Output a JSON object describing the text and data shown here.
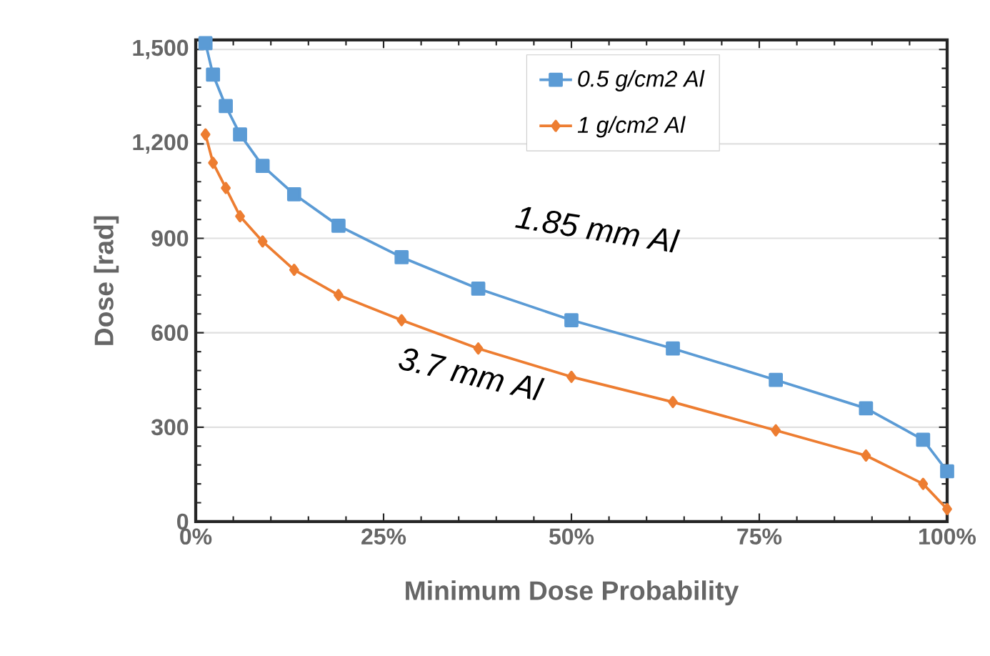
{
  "chart_data": {
    "type": "line",
    "xlabel": "Minimum Dose Probability",
    "ylabel": "Dose [rad]",
    "xlim": [
      0,
      100
    ],
    "ylim": [
      0,
      1530
    ],
    "xticks": [
      {
        "value": 0,
        "label": "0%"
      },
      {
        "value": 25,
        "label": "25%"
      },
      {
        "value": 50,
        "label": "50%"
      },
      {
        "value": 75,
        "label": "75%"
      },
      {
        "value": 100,
        "label": "100%"
      }
    ],
    "yticks": [
      0,
      300,
      600,
      900,
      {
        "value": 1200,
        "label": "1,200"
      },
      {
        "value": 1500,
        "label": "1,500"
      }
    ],
    "grid": "y",
    "legend": "top right",
    "series": [
      {
        "name": "0.5 g/cm2 Al",
        "color": "#5b9bd5",
        "marker": "square",
        "x": [
          1.3,
          2.3,
          4,
          5.9,
          8.9,
          13.1,
          19,
          27.4,
          37.6,
          50,
          63.5,
          77.2,
          89.2,
          96.8,
          100
        ],
        "values": [
          1520,
          1420,
          1320,
          1230,
          1130,
          1040,
          940,
          840,
          740,
          640,
          550,
          450,
          360,
          260,
          160
        ]
      },
      {
        "name": "1 g/cm2 Al",
        "color": "#ed7d31",
        "marker": "diamond",
        "x": [
          1.3,
          2.3,
          4,
          5.9,
          8.9,
          13.1,
          19,
          27.4,
          37.6,
          50,
          63.5,
          77.2,
          89.2,
          96.8,
          100
        ],
        "values": [
          1230,
          1140,
          1060,
          970,
          890,
          800,
          720,
          640,
          550,
          460,
          380,
          290,
          210,
          120,
          40
        ]
      }
    ],
    "annotations": [
      "1.85 mm Al",
      "3.7 mm Al"
    ]
  }
}
